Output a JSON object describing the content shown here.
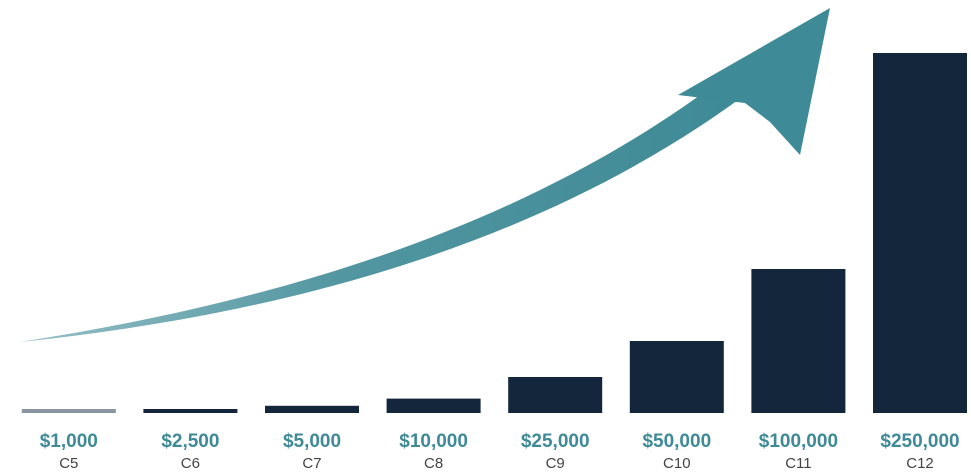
{
  "chart_data": {
    "type": "bar",
    "categories": [
      "C5",
      "C6",
      "C7",
      "C8",
      "C9",
      "C10",
      "C11",
      "C12"
    ],
    "values": [
      1000,
      2500,
      5000,
      10000,
      25000,
      50000,
      100000,
      250000
    ],
    "value_labels": [
      "$1,000",
      "$2,500",
      "$5,000",
      "$10,000",
      "$25,000",
      "$50,000",
      "$100,000",
      "$250,000"
    ],
    "title": "",
    "xlabel": "",
    "ylabel": "",
    "ylim": [
      0,
      250000
    ],
    "grid": false,
    "legend": "none",
    "annotation": "upward-growth-arrow",
    "colors": {
      "bar": "#13263b",
      "first_bar": "#8a95a0",
      "value_label": "#3e8a96",
      "category_label": "#444444",
      "arrow": "#3e8a96"
    }
  }
}
